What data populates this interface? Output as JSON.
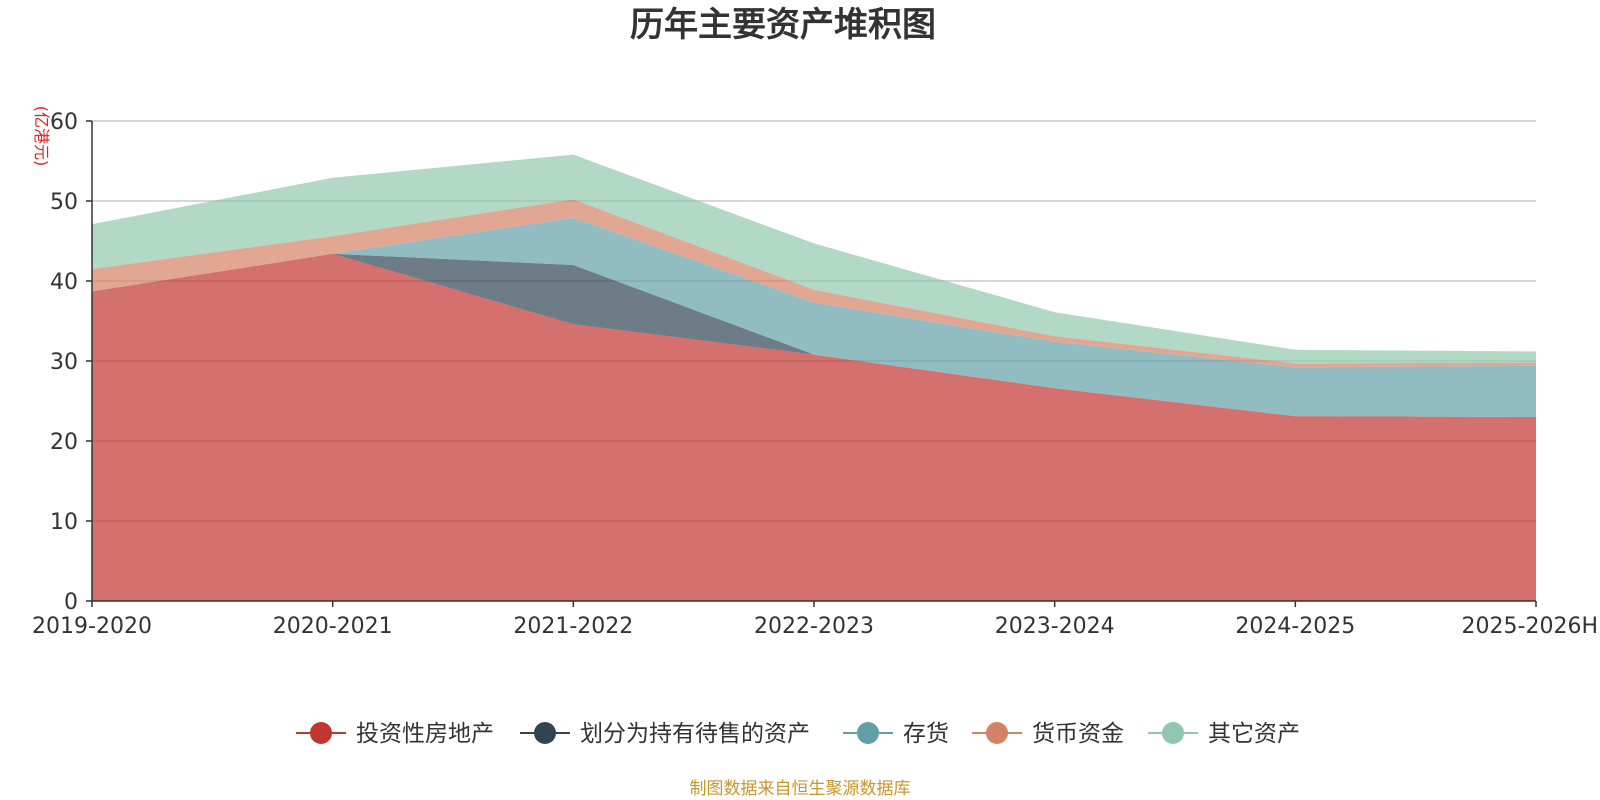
{
  "chart_data": {
    "type": "area",
    "stacked": true,
    "title": "历年主要资产堆积图",
    "unit_label": "(亿港元)",
    "ylim": [
      0,
      60
    ],
    "yticks": [
      0,
      10,
      20,
      30,
      40,
      50,
      60
    ],
    "categories": [
      "2019-2020",
      "2020-2021",
      "2021-2022",
      "2022-2023",
      "2023-2024",
      "2024-2025",
      "2025-2026H"
    ],
    "series": [
      {
        "name": "投资性房地产",
        "color": "#c23531",
        "values": [
          38.7,
          43.4,
          34.6,
          30.8,
          26.6,
          23.1,
          23.0
        ]
      },
      {
        "name": "划分为持有待售的资产",
        "color": "#2f4554",
        "values": [
          0.0,
          0.0,
          7.4,
          0.0,
          0.0,
          0.0,
          0.0
        ]
      },
      {
        "name": "存货",
        "color": "#61a0a8",
        "values": [
          0.0,
          0.0,
          5.9,
          6.5,
          5.8,
          6.1,
          6.4
        ]
      },
      {
        "name": "货币资金",
        "color": "#d48265",
        "values": [
          2.8,
          2.2,
          2.3,
          1.6,
          0.7,
          0.5,
          0.4
        ]
      },
      {
        "name": "其它资产",
        "color": "#91c7ae",
        "values": [
          5.6,
          7.3,
          5.6,
          5.8,
          3.0,
          1.7,
          1.4
        ]
      }
    ],
    "legend_position": "bottom-center",
    "source": "制图数据来自恒生聚源数据库"
  }
}
